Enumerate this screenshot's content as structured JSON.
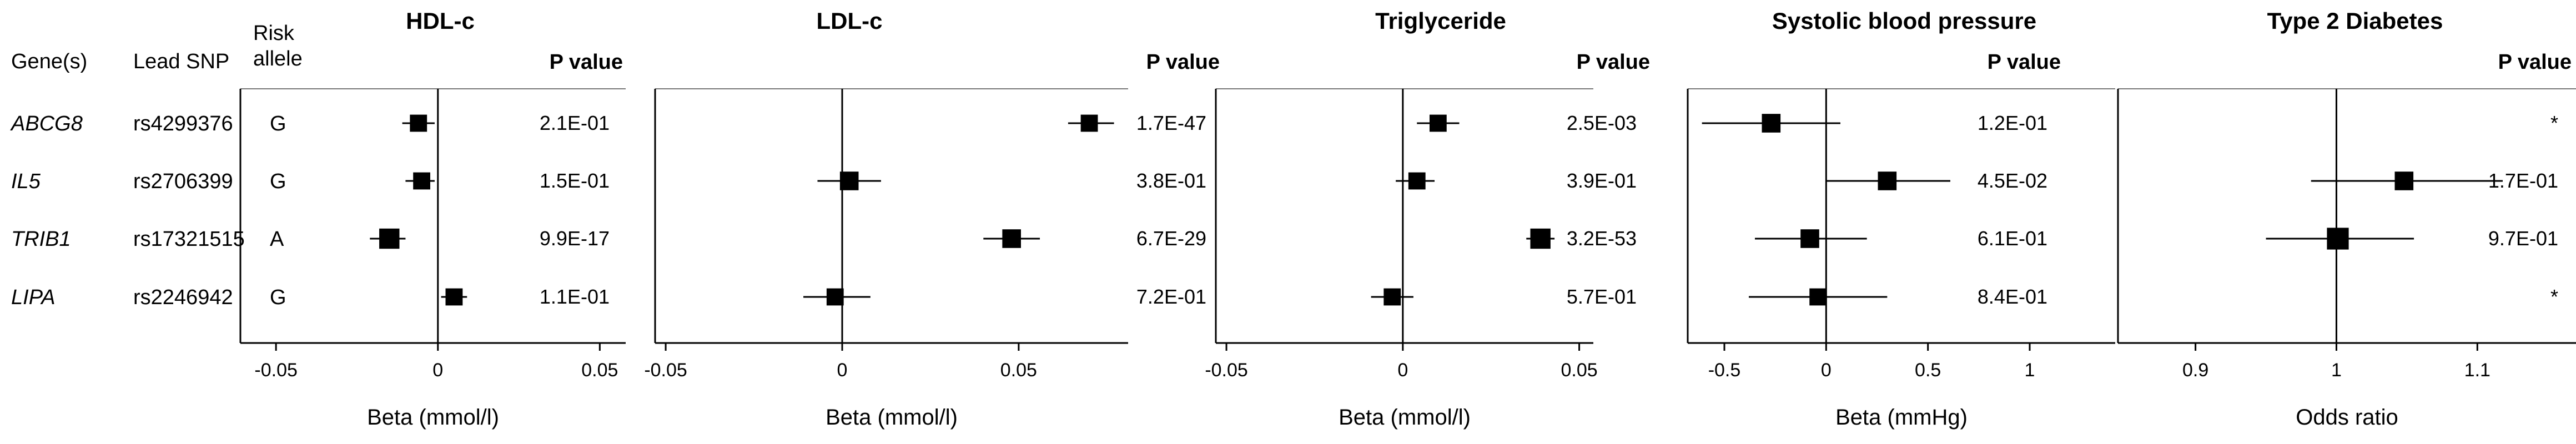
{
  "table": {
    "headers": {
      "gene": "Gene(s)",
      "snp": "Lead SNP",
      "risk": [
        "Risk",
        "allele"
      ]
    },
    "rows": [
      {
        "gene": "ABCG8",
        "snp": "rs4299376",
        "allele": "G"
      },
      {
        "gene": "IL5",
        "snp": "rs2706399",
        "allele": "G"
      },
      {
        "gene": "TRIB1",
        "snp": "rs17321515",
        "allele": "A"
      },
      {
        "gene": "LIPA",
        "snp": "rs2246942",
        "allele": "G"
      }
    ]
  },
  "pvalue_label": "P value",
  "chart_data": [
    {
      "type": "scatter",
      "title": "HDL-c",
      "xlabel": "Beta (mmol/l)",
      "xlim": [
        -0.061,
        0.058
      ],
      "ref": 0,
      "ticks": [
        -0.05,
        0,
        0.05
      ],
      "tick_labels": [
        "-0.05",
        "0",
        "0.05"
      ],
      "rows": [
        {
          "gene": "ABCG8",
          "est": -0.006,
          "lo": -0.011,
          "hi": -0.001,
          "p": "2.1E-01",
          "size": 0.55
        },
        {
          "gene": "IL5",
          "est": -0.005,
          "lo": -0.01,
          "hi": -0.001,
          "p": "1.5E-01",
          "size": 0.55
        },
        {
          "gene": "TRIB1",
          "est": -0.015,
          "lo": -0.021,
          "hi": -0.01,
          "p": "9.9E-17",
          "size": 0.65
        },
        {
          "gene": "LIPA",
          "est": 0.005,
          "lo": 0.001,
          "hi": 0.009,
          "p": "1.1E-01",
          "size": 0.55
        }
      ]
    },
    {
      "type": "scatter",
      "title": "LDL-c",
      "xlabel": "Beta (mmol/l)",
      "xlim": [
        -0.053,
        0.081
      ],
      "ref": 0,
      "ticks": [
        -0.05,
        0,
        0.05
      ],
      "tick_labels": [
        "-0.05",
        "0",
        "0.05"
      ],
      "rows": [
        {
          "gene": "ABCG8",
          "est": 0.07,
          "lo": 0.064,
          "hi": 0.077,
          "p": "1.7E-47",
          "size": 0.55
        },
        {
          "gene": "IL5",
          "est": 0.002,
          "lo": -0.007,
          "hi": 0.011,
          "p": "3.8E-01",
          "size": 0.6
        },
        {
          "gene": "TRIB1",
          "est": 0.048,
          "lo": 0.04,
          "hi": 0.056,
          "p": "6.7E-29",
          "size": 0.6
        },
        {
          "gene": "LIPA",
          "est": -0.002,
          "lo": -0.011,
          "hi": 0.008,
          "p": "7.2E-01",
          "size": 0.55
        }
      ]
    },
    {
      "type": "scatter",
      "title": "Triglyceride",
      "xlabel": "Beta (mmol/l)",
      "xlim": [
        -0.053,
        0.054
      ],
      "ref": 0,
      "ticks": [
        -0.05,
        0,
        0.05
      ],
      "tick_labels": [
        "-0.05",
        "0",
        "0.05"
      ],
      "rows": [
        {
          "gene": "ABCG8",
          "est": 0.01,
          "lo": 0.004,
          "hi": 0.016,
          "p": "2.5E-03",
          "size": 0.55
        },
        {
          "gene": "IL5",
          "est": 0.004,
          "lo": -0.002,
          "hi": 0.009,
          "p": "3.9E-01",
          "size": 0.55
        },
        {
          "gene": "TRIB1",
          "est": 0.039,
          "lo": 0.035,
          "hi": 0.043,
          "p": "3.2E-53",
          "size": 0.65
        },
        {
          "gene": "LIPA",
          "est": -0.003,
          "lo": -0.009,
          "hi": 0.003,
          "p": "5.7E-01",
          "size": 0.55
        }
      ]
    },
    {
      "type": "scatter",
      "title": "Systolic blood pressure",
      "xlabel": "Beta (mmHg)",
      "xlim": [
        -0.68,
        1.42
      ],
      "ref": 0,
      "ticks": [
        -0.5,
        0,
        0.5,
        1
      ],
      "tick_labels": [
        "-0.5",
        "0",
        "0.5",
        "1"
      ],
      "rows": [
        {
          "gene": "ABCG8",
          "est": -0.27,
          "lo": -0.61,
          "hi": 0.07,
          "p": "1.2E-01",
          "size": 0.6
        },
        {
          "gene": "IL5",
          "est": 0.3,
          "lo": 0.0,
          "hi": 0.61,
          "p": "4.5E-02",
          "size": 0.6
        },
        {
          "gene": "TRIB1",
          "est": -0.08,
          "lo": -0.35,
          "hi": 0.2,
          "p": "6.1E-01",
          "size": 0.6
        },
        {
          "gene": "LIPA",
          "est": -0.04,
          "lo": -0.38,
          "hi": 0.3,
          "p": "8.4E-01",
          "size": 0.55
        }
      ]
    },
    {
      "type": "scatter",
      "title": "Type 2 Diabetes",
      "xlabel": "Odds ratio",
      "xlim": [
        0.845,
        1.17
      ],
      "ref": 1,
      "ticks": [
        0.9,
        1,
        1.1
      ],
      "tick_labels": [
        "0.9",
        "1",
        "1.1"
      ],
      "rows": [
        {
          "gene": "ABCG8",
          "est": null,
          "lo": null,
          "hi": null,
          "p": "*",
          "size": 0
        },
        {
          "gene": "IL5",
          "est": 1.048,
          "lo": 0.982,
          "hi": 1.118,
          "p": "1.7E-01",
          "size": 0.6
        },
        {
          "gene": "TRIB1",
          "est": 1.001,
          "lo": 0.95,
          "hi": 1.055,
          "p": "9.7E-01",
          "size": 0.7
        },
        {
          "gene": "LIPA",
          "est": null,
          "lo": null,
          "hi": null,
          "p": "*",
          "size": 0
        }
      ]
    }
  ]
}
